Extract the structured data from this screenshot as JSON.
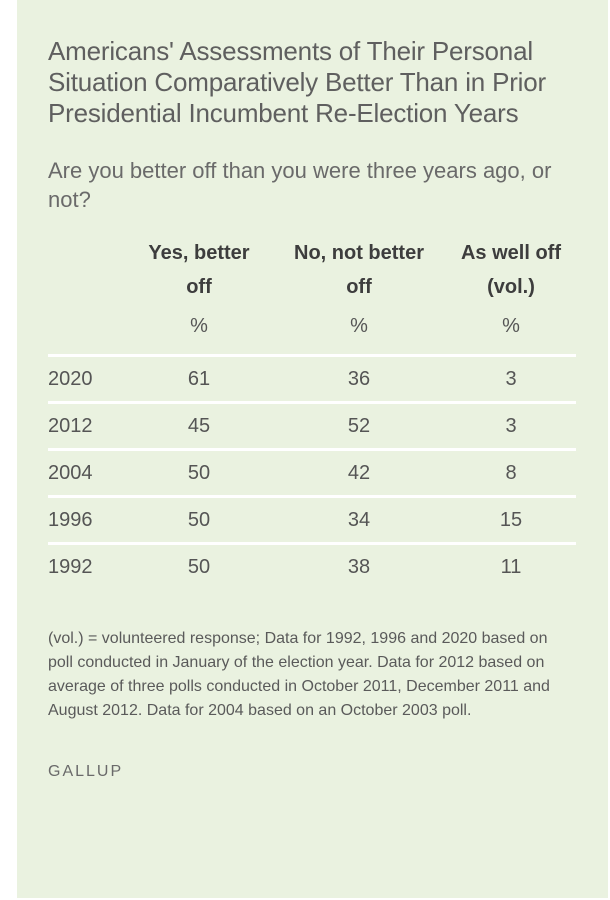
{
  "title": "Americans' Assessments of Their Personal Situation Comparatively Better Than in Prior Presidential Incumbent Re-Election Years",
  "question": "Are you better off than you were three years ago, or not?",
  "table": {
    "headers": [
      {
        "line1": "Yes, better",
        "line2": "off"
      },
      {
        "line1": "No, not better",
        "line2": "off"
      },
      {
        "line1": "As well off",
        "line2": "(vol.)"
      }
    ],
    "units": [
      "%",
      "%",
      "%"
    ],
    "rows": [
      {
        "year": "2020",
        "yes": "61",
        "no": "36",
        "as_well": "3"
      },
      {
        "year": "2012",
        "yes": "45",
        "no": "52",
        "as_well": "3"
      },
      {
        "year": "2004",
        "yes": "50",
        "no": "42",
        "as_well": "8"
      },
      {
        "year": "1996",
        "yes": "50",
        "no": "34",
        "as_well": "15"
      },
      {
        "year": "1992",
        "yes": "50",
        "no": "38",
        "as_well": "11"
      }
    ]
  },
  "note": "(vol.) = volunteered response; Data for 1992, 1996 and 2020 based on poll conducted in January of the election year. Data for 2012 based on average of three polls conducted in October 2011, December 2011 and August 2012. Data for 2004 based on an October 2003 poll.",
  "brand": "GALLUP",
  "colors": {
    "card_background": "#eaf2e0",
    "row_divider": "#ffffff",
    "header_text": "#3d3d3d",
    "body_text": "#555555"
  }
}
